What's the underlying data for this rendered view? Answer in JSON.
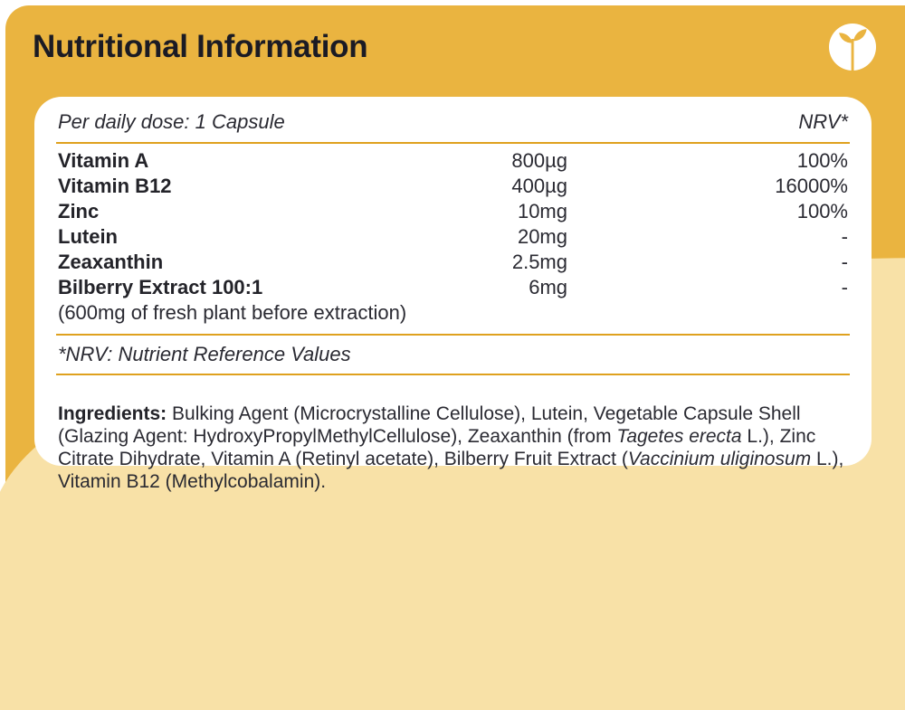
{
  "title": "Nutritional Information",
  "logo_icon": "sprout-in-circle",
  "colors": {
    "golden": "#EAB440",
    "pale": "#F8E1A7",
    "card": "#FFFFFF",
    "line": "#DFA11E",
    "ink": "#1B1B24",
    "body": "#2A2A32"
  },
  "panel": {
    "header_left": "Per daily dose: 1 Capsule",
    "header_right": "NRV*",
    "rows": [
      {
        "name": "Vitamin A",
        "amount": "800µg",
        "nrv": "100%"
      },
      {
        "name": "Vitamin B12",
        "amount": "400µg",
        "nrv": "16000%"
      },
      {
        "name": "Zinc",
        "amount": "10mg",
        "nrv": "100%"
      },
      {
        "name": "Lutein",
        "amount": "20mg",
        "nrv": "-"
      },
      {
        "name": "Zeaxanthin",
        "amount": "2.5mg",
        "nrv": "-"
      },
      {
        "name": "Bilberry Extract 100:1",
        "amount": "6mg",
        "nrv": "-",
        "note": "(600mg of fresh plant before extraction)"
      }
    ],
    "footnote": "*NRV: Nutrient Reference Values",
    "ingredients": {
      "label": "Ingredients:",
      "segments": [
        {
          "text": " Bulking Agent (Microcrystalline Cellulose), Lutein, Vegetable Capsule Shell (Glazing Agent: HydroxyPropylMethylCellulose), Zeaxanthin (from ",
          "italic": false
        },
        {
          "text": "Tagetes erecta",
          "italic": true
        },
        {
          "text": " L.), Zinc Citrate Dihydrate, Vitamin A (Retinyl acetate), Bilberry Fruit Extract (",
          "italic": false
        },
        {
          "text": "Vaccinium uliginosum",
          "italic": true
        },
        {
          "text": " L.), Vitamin B12 (Methylcobalamin).",
          "italic": false
        }
      ]
    }
  }
}
